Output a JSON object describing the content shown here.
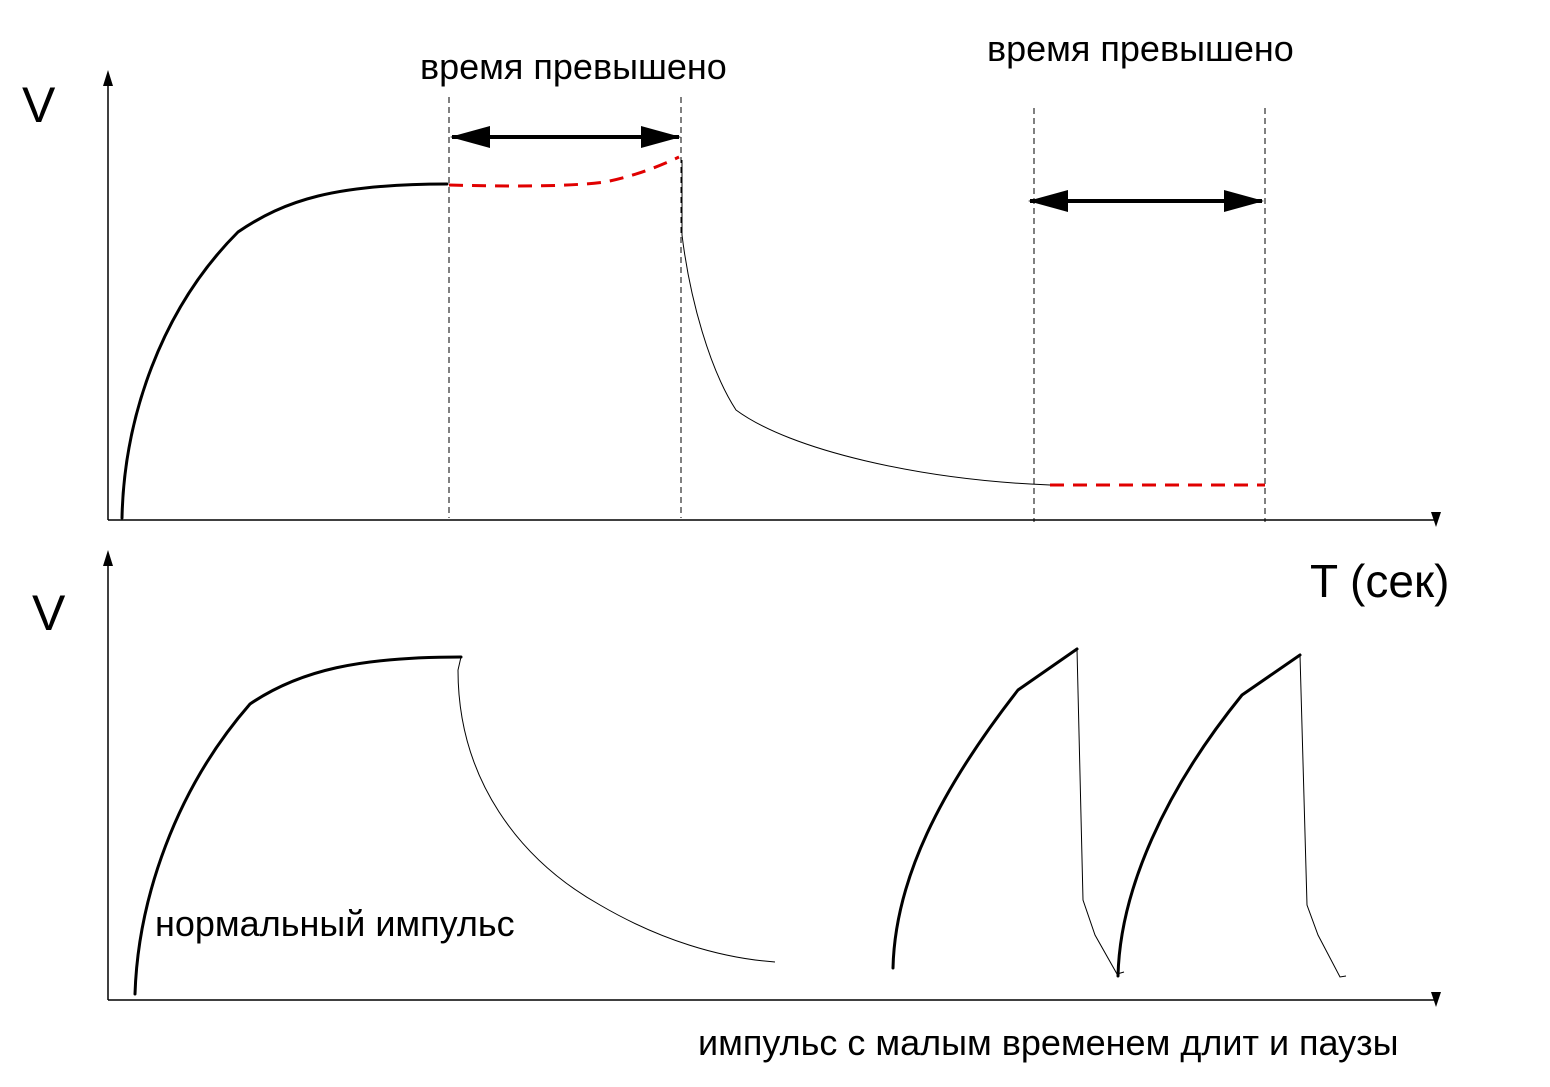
{
  "labels": {
    "v_top": "V",
    "v_bottom": "V",
    "time_axis": "T (сек)",
    "exceeded_1": "время превышено",
    "exceeded_2": "время превышено",
    "normal_pulse": "нормальный импульс",
    "short_pulse": "импульс  с малым временем длит и паузы"
  },
  "colors": {
    "curve": "#000000",
    "exceeded_segment": "#e00000",
    "background": "#ffffff"
  }
}
